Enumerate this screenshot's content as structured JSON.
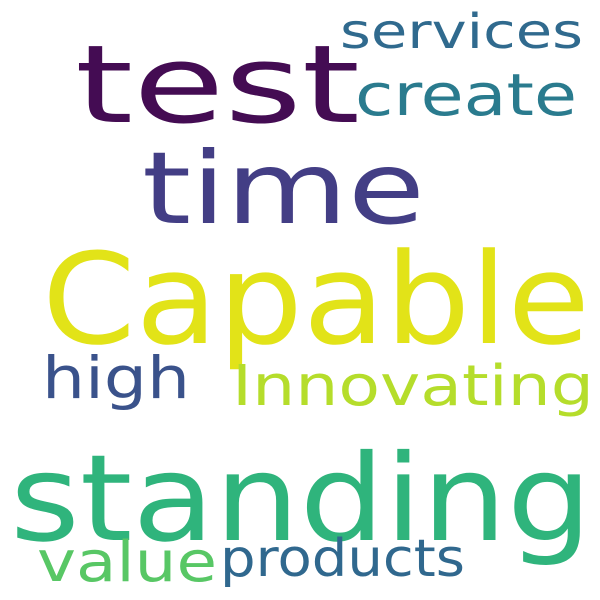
{
  "words": [
    {
      "text": "Capable",
      "color": "#e2e318"
    },
    {
      "text": "standing",
      "color": "#2fb47c"
    },
    {
      "text": "test",
      "color": "#440c53"
    },
    {
      "text": "time",
      "color": "#433e85"
    },
    {
      "text": "services",
      "color": "#306a8e"
    },
    {
      "text": "create",
      "color": "#2a7b8e"
    },
    {
      "text": "high",
      "color": "#3a528b"
    },
    {
      "text": "Innovating",
      "color": "#b5dd2b"
    },
    {
      "text": "value",
      "color": "#58c765"
    },
    {
      "text": "products",
      "color": "#30688e"
    }
  ]
}
